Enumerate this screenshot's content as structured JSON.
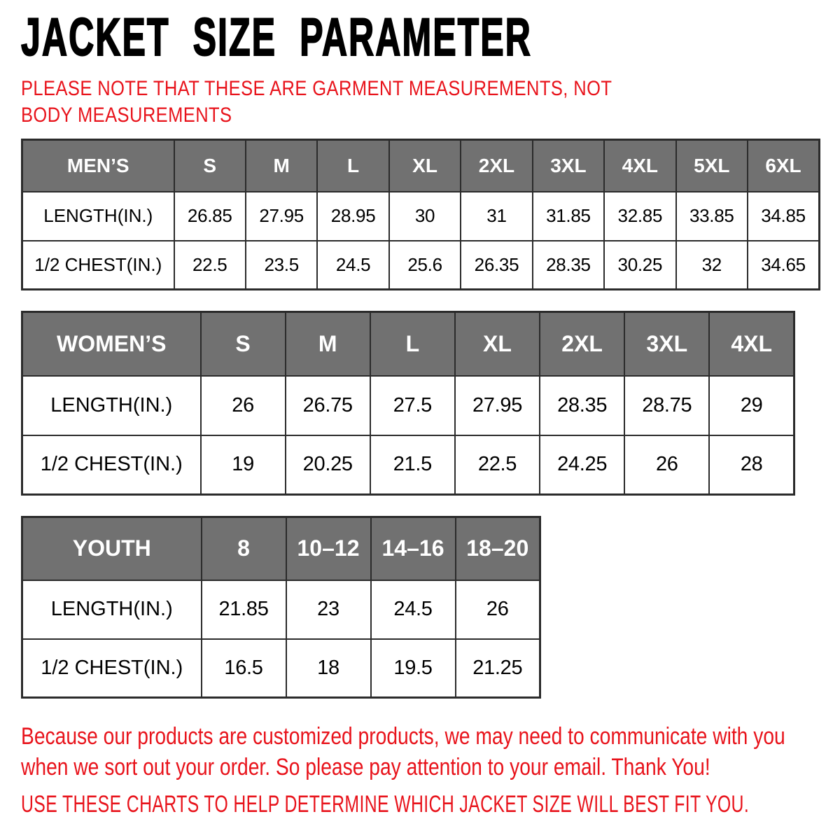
{
  "title": "JACKET SIZE PARAMETER",
  "note": "PLEASE NOTE THAT THESE ARE GARMENT MEASUREMENTS, NOT BODY MEASUREMENTS",
  "tables": {
    "mens": {
      "header": "MEN’S",
      "sizes": [
        "S",
        "M",
        "L",
        "XL",
        "2XL",
        "3XL",
        "4XL",
        "5XL",
        "6XL"
      ],
      "rows": [
        {
          "label": "LENGTH(IN.)",
          "values": [
            "26.85",
            "27.95",
            "28.95",
            "30",
            "31",
            "31.85",
            "32.85",
            "33.85",
            "34.85"
          ]
        },
        {
          "label": "1/2 CHEST(IN.)",
          "values": [
            "22.5",
            "23.5",
            "24.5",
            "25.6",
            "26.35",
            "28.35",
            "30.25",
            "32",
            "34.65"
          ]
        }
      ]
    },
    "womens": {
      "header": "WOMEN’S",
      "sizes": [
        "S",
        "M",
        "L",
        "XL",
        "2XL",
        "3XL",
        "4XL"
      ],
      "rows": [
        {
          "label": "LENGTH(IN.)",
          "values": [
            "26",
            "26.75",
            "27.5",
            "27.95",
            "28.35",
            "28.75",
            "29"
          ]
        },
        {
          "label": "1/2 CHEST(IN.)",
          "values": [
            "19",
            "20.25",
            "21.5",
            "22.5",
            "24.25",
            "26",
            "28"
          ]
        }
      ]
    },
    "youth": {
      "header": "YOUTH",
      "sizes": [
        "8",
        "10–12",
        "14–16",
        "18–20"
      ],
      "rows": [
        {
          "label": "LENGTH(IN.)",
          "values": [
            "21.85",
            "23",
            "24.5",
            "26"
          ]
        },
        {
          "label": "1/2 CHEST(IN.)",
          "values": [
            "16.5",
            "18",
            "19.5",
            "21.25"
          ]
        }
      ]
    }
  },
  "footer": {
    "paragraph": "Because our products are customized products, we may need to communicate with you when we sort out your order. So please pay attention to your email. Thank You!",
    "advice": "USE THESE CHARTS TO HELP DETERMINE WHICH JACKET SIZE WILL BEST FIT YOU."
  },
  "colors": {
    "accent_red": "#e8131b",
    "header_gray": "#717171",
    "border": "#2b2b2b"
  }
}
